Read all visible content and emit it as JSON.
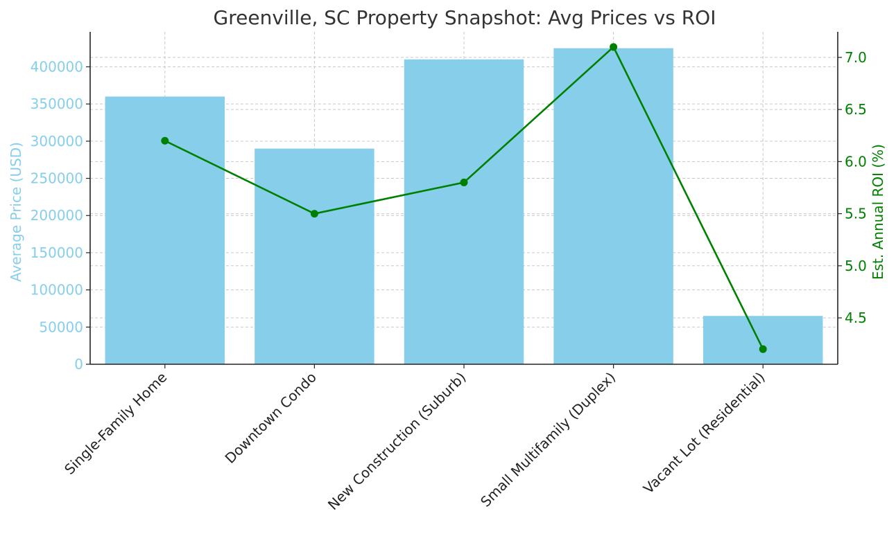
{
  "chart_data": {
    "type": "bar",
    "title": "Greenville, SC Property Snapshot: Avg Prices vs ROI",
    "categories": [
      "Single-Family Home",
      "Downtown Condo",
      "New Construction (Suburb)",
      "Small Multifamily (Duplex)",
      "Vacant Lot (Residential)"
    ],
    "series": [
      {
        "type": "bar",
        "axis": "left",
        "values": [
          360000,
          290000,
          410000,
          425000,
          65000
        ],
        "color": "#87ceeb"
      },
      {
        "type": "line",
        "axis": "right",
        "values": [
          6.2,
          5.5,
          5.8,
          7.1,
          4.2
        ],
        "color": "#008000"
      }
    ],
    "y_left": {
      "label": "Average Price (USD)",
      "range": [
        0,
        447000
      ],
      "ticks": [
        0,
        50000,
        100000,
        150000,
        200000,
        250000,
        300000,
        350000,
        400000
      ],
      "tick_labels": [
        "0",
        "50000",
        "100000",
        "150000",
        "200000",
        "250000",
        "300000",
        "350000",
        "400000"
      ],
      "color": "#87ceeb"
    },
    "y_right": {
      "label": "Est. Annual ROI (%)",
      "range": [
        4.055,
        7.245
      ],
      "ticks": [
        4.5,
        5.0,
        5.5,
        6.0,
        6.5,
        7.0
      ],
      "tick_labels": [
        "4.5",
        "5.0",
        "5.5",
        "6.0",
        "6.5",
        "7.0"
      ],
      "color": "#008000"
    },
    "grid": true,
    "legend": "none"
  }
}
